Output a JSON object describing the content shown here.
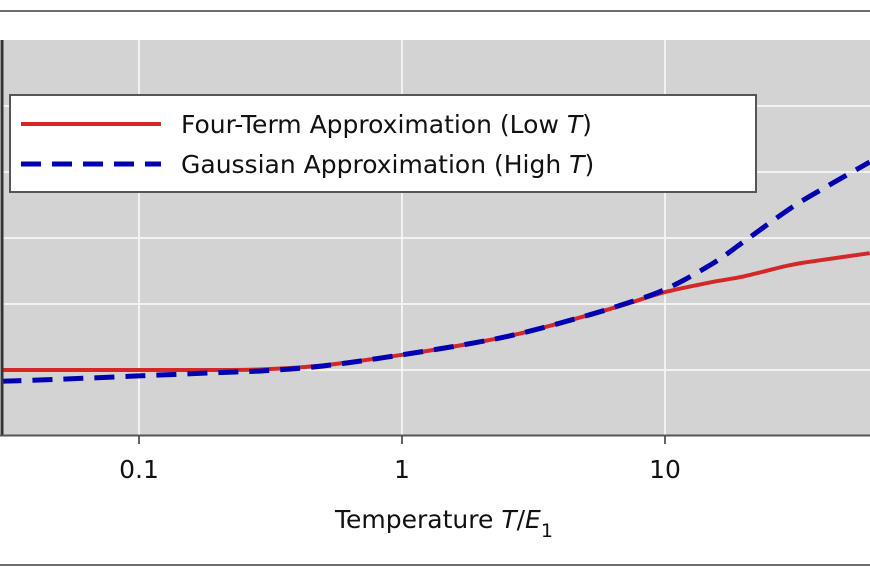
{
  "chart_data": {
    "type": "line",
    "title": "",
    "xlabel": "Temperature T/E_1",
    "xlabel_parts": {
      "prefix": "Temperature ",
      "italic_T": "T",
      "slash": "/",
      "italic_E": "E",
      "subscript": "1"
    },
    "ylabel": "",
    "xscale": "log",
    "xlim": [
      0.03,
      60
    ],
    "x_ticks": [
      0.1,
      1,
      10
    ],
    "x_tick_labels": [
      "0.1",
      "1",
      "10"
    ],
    "y_ticks_note": "y tick labels not visible (cropped); y values given in units of gridline spacing relative to the low-T plateau",
    "y_gridlines_rel": [
      0,
      1,
      2,
      3,
      4
    ],
    "ylim_rel": [
      -0.98,
      5.0
    ],
    "grid": true,
    "legend_position": "upper left",
    "series": [
      {
        "name": "Four-Term Approximation (Low T)",
        "color": "#d62728",
        "linestyle": "solid",
        "x": [
          0.03,
          0.05,
          0.1,
          0.2,
          0.3,
          0.5,
          1,
          2,
          3,
          5,
          7,
          10,
          15,
          20,
          30,
          40,
          60
        ],
        "y": [
          0.0,
          0.0,
          0.0,
          0.0,
          0.01,
          0.07,
          0.23,
          0.43,
          0.58,
          0.82,
          0.99,
          1.18,
          1.33,
          1.42,
          1.59,
          1.67,
          1.77
        ]
      },
      {
        "name": "Gaussian Approximation (High T)",
        "color": "#0000b0",
        "linestyle": "dashed",
        "x": [
          0.03,
          0.05,
          0.1,
          0.2,
          0.3,
          0.5,
          1,
          2,
          3,
          5,
          7,
          10,
          15,
          20,
          30,
          40,
          60
        ],
        "y": [
          -0.17,
          -0.14,
          -0.09,
          -0.04,
          -0.01,
          0.06,
          0.23,
          0.43,
          0.58,
          0.82,
          1.0,
          1.22,
          1.6,
          1.95,
          2.45,
          2.75,
          3.15
        ]
      }
    ]
  },
  "legend": {
    "items": [
      {
        "label_main": "Four-Term Approximation (Low ",
        "label_italic": "T",
        "label_end": ")",
        "color": "#d62728",
        "style": "solid"
      },
      {
        "label_main": "Gaussian Approximation (High ",
        "label_italic": "T",
        "label_end": ")",
        "color": "#0000b0",
        "style": "dashed"
      }
    ]
  },
  "colors": {
    "plot_background": "#d3d3d3",
    "gridline": "#f2f2f2",
    "frame": "#6e6e6e"
  }
}
